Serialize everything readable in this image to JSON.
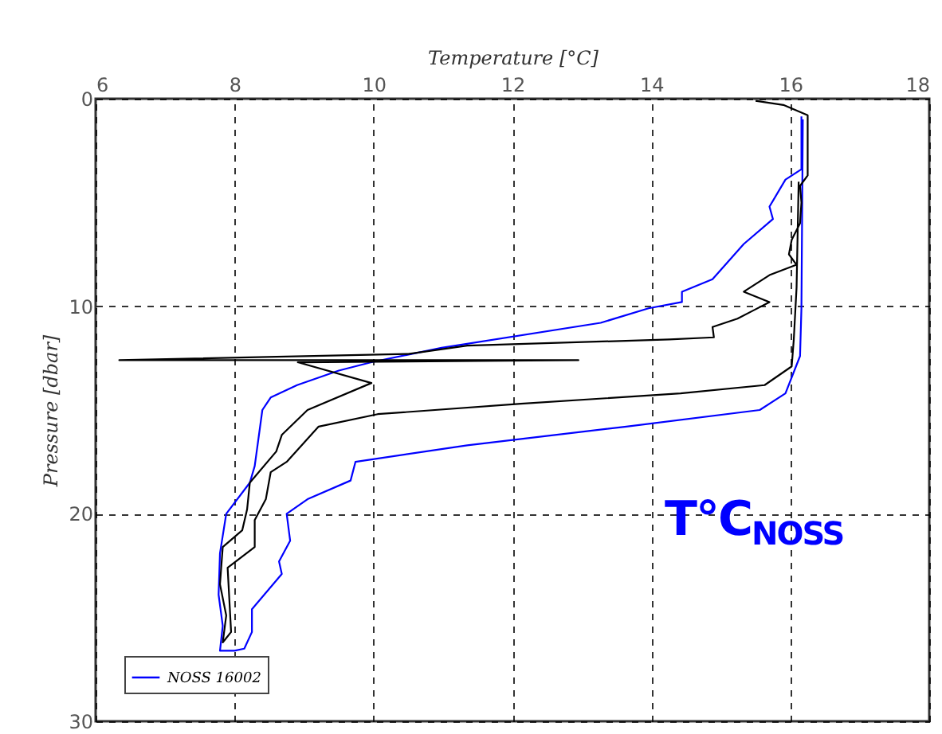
{
  "chart_data": {
    "type": "line",
    "xlabel": "Temperature [°C]",
    "ylabel": "Pressure [dbar]",
    "xlim": [
      6,
      18
    ],
    "xticks": [
      6,
      8,
      10,
      12,
      14,
      16,
      18
    ],
    "ylim": [
      30,
      0
    ],
    "yticks": [
      0,
      10,
      20,
      30
    ],
    "grid": true,
    "legend": "bottom left",
    "annotations": [
      "T°C$_{NOSS}$"
    ],
    "series": [
      {
        "name": "NOSS 16002",
        "color": "#0000ff",
        "x": [
          16.16,
          16.16,
          15.93,
          15.7,
          15.75,
          15.33,
          14.88,
          14.44,
          14.44,
          13.96,
          13.27,
          10.98,
          9.97,
          9.5,
          8.9,
          8.52,
          8.4,
          8.29,
          8.22,
          7.88,
          7.79,
          7.77,
          7.83,
          7.79,
          8.0,
          8.14,
          8.25,
          8.25,
          8.68,
          8.64,
          8.8,
          8.75,
          9.05,
          9.67,
          9.74,
          11.35,
          13.64,
          15.56,
          15.93,
          16.14,
          16.16,
          16.18
        ],
        "values": [
          0.85,
          3.4,
          3.9,
          5.2,
          5.8,
          7.0,
          8.7,
          9.3,
          9.8,
          10.1,
          10.8,
          12.0,
          12.7,
          13.1,
          13.8,
          14.4,
          15.0,
          17.7,
          18.5,
          20.0,
          21.9,
          23.9,
          25.4,
          26.6,
          26.6,
          26.5,
          25.7,
          24.6,
          22.9,
          22.3,
          21.3,
          20.0,
          19.3,
          18.4,
          17.5,
          16.7,
          15.8,
          15.0,
          14.2,
          12.4,
          10.1,
          1.0
        ]
      },
      {
        "color": "#000000",
        "x": [
          15.5,
          15.9,
          16.25,
          16.25,
          16.14,
          16.16,
          16.14,
          16.02,
          15.98,
          16.09,
          15.7,
          15.33,
          15.7,
          15.47,
          15.24,
          14.88,
          14.9,
          14.26,
          11.35,
          10.5,
          6.34,
          12.95,
          8.91,
          9.97,
          9.05,
          8.68,
          8.6,
          8.22,
          8.18,
          8.11,
          7.83,
          7.79,
          7.88,
          7.83,
          7.95,
          7.9,
          8.29,
          8.29,
          8.45,
          8.52,
          8.75,
          9.21,
          10.06,
          12.12,
          14.42,
          15.63,
          16.02,
          16.05,
          16.09,
          16.12
        ],
        "values": [
          0.1,
          0.3,
          0.8,
          3.7,
          4.2,
          5.0,
          6.0,
          6.8,
          7.5,
          8.0,
          8.5,
          9.3,
          9.8,
          10.2,
          10.6,
          11.0,
          11.5,
          11.6,
          11.9,
          12.3,
          12.6,
          12.6,
          12.7,
          13.7,
          15.0,
          16.2,
          17.0,
          18.5,
          19.8,
          20.8,
          21.6,
          23.4,
          24.9,
          26.2,
          25.7,
          22.6,
          21.6,
          20.3,
          19.3,
          18.0,
          17.5,
          15.8,
          15.2,
          14.7,
          14.2,
          13.8,
          12.9,
          11.6,
          9.1,
          4.0
        ]
      }
    ]
  }
}
